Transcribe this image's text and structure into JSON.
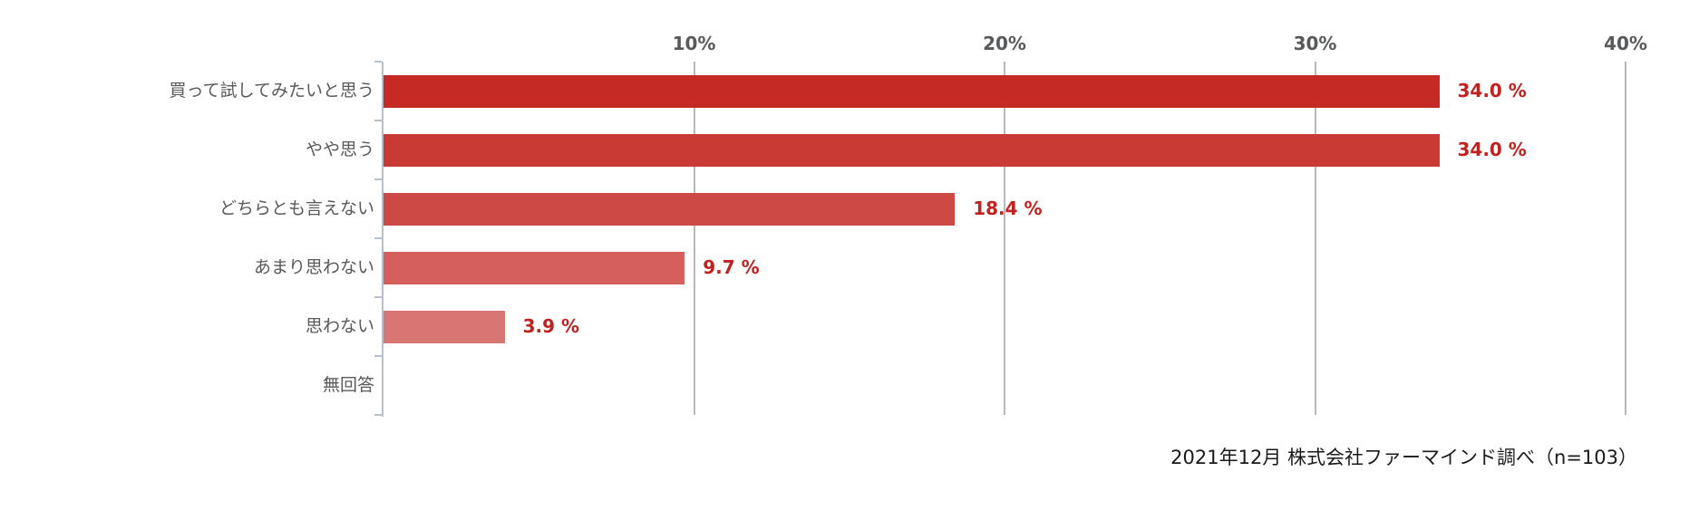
{
  "chart_data": {
    "type": "bar",
    "orientation": "horizontal",
    "categories": [
      "買って試してみたいと思う",
      "やや思う",
      "どちらとも言えない",
      "あまり思わない",
      "思わない",
      "無回答"
    ],
    "values": [
      34.0,
      34.0,
      18.4,
      9.7,
      3.9,
      0
    ],
    "value_labels": [
      "34.0 %",
      "34.0 %",
      "18.4 %",
      "9.7 %",
      "3.9 %",
      ""
    ],
    "bar_colors": [
      "#c62a25",
      "#c93a35",
      "#cc4946",
      "#d45f5d",
      "#d87674",
      null
    ],
    "x_axis": {
      "position": "top",
      "tick_labels": [
        "10%",
        "20%",
        "30%",
        "40%"
      ],
      "tick_values": [
        10,
        20,
        30,
        40
      ],
      "min": 0,
      "max": 40
    },
    "grid": "vertical-only",
    "legend": "none",
    "colors": {
      "value_label": "#c2211f",
      "axis_tick_label": "#58595b",
      "category_label": "#595959",
      "gridline": "#b9b9b9",
      "axis_line": "#b5c2ce"
    }
  },
  "caption": {
    "text": "2021年12月 株式会社ファーマインド調べ（n=103）"
  }
}
